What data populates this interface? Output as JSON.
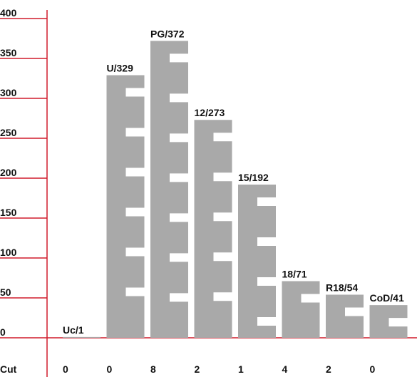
{
  "chart_data": {
    "type": "bar",
    "title": "",
    "xlabel": "",
    "ylabel": "",
    "ylim": [
      0,
      400
    ],
    "yticks": [
      0,
      50,
      100,
      150,
      200,
      250,
      300,
      350,
      400
    ],
    "ytick_labels": [
      "0",
      "50",
      "100",
      "150",
      "200",
      "250",
      "300",
      "350",
      "400"
    ],
    "grid": false,
    "categories": [
      "Uc",
      "U",
      "PG",
      "12",
      "15",
      "18",
      "R18",
      "CoD"
    ],
    "bar_labels": [
      "Uc/1",
      "U/329",
      "PG/372",
      "12/273",
      "15/192",
      "18/71",
      "R18/54",
      "CoD/41"
    ],
    "values": [
      1,
      329,
      372,
      273,
      192,
      71,
      54,
      41
    ],
    "cut_row": {
      "title": "Cut",
      "values": [
        "0",
        "0",
        "8",
        "2",
        "1",
        "4",
        "2",
        "0"
      ]
    }
  },
  "colors": {
    "axis": "#d01c2b",
    "bar": "#a9a9a9",
    "text": "#111111",
    "background": "#ffffff"
  }
}
